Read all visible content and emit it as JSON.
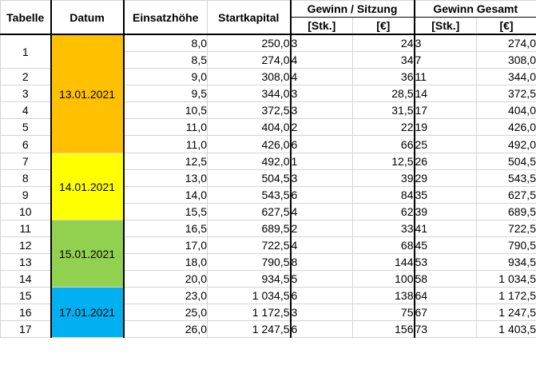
{
  "headers": {
    "tabelle": "Tabelle",
    "datum": "Datum",
    "einsatzhoehe": "Einsatzhöhe",
    "startkapital": "Startkapital",
    "gewinn_sitzung": "Gewinn / Sitzung",
    "gewinn_gesamt": "Gewinn Gesamt",
    "unit_stk": "[Stk.]",
    "unit_eur": "[€]"
  },
  "dates": [
    {
      "label": "13.01.2021",
      "color": "#ffc000"
    },
    {
      "label": "14.01.2021",
      "color": "#ffff00"
    },
    {
      "label": "15.01.2021",
      "color": "#92d050"
    },
    {
      "label": "17.01.2021",
      "color": "#00b0f0"
    }
  ],
  "rows": [
    {
      "tabelle": "1",
      "einsatz": "8,0",
      "start": "250,0",
      "sit_stk": "3",
      "sit_eur": "24",
      "ges_stk": "3",
      "ges_eur": "274,0"
    },
    {
      "tabelle": "",
      "einsatz": "8,5",
      "start": "274,0",
      "sit_stk": "4",
      "sit_eur": "34",
      "ges_stk": "7",
      "ges_eur": "308,0"
    },
    {
      "tabelle": "2",
      "einsatz": "9,0",
      "start": "308,0",
      "sit_stk": "4",
      "sit_eur": "36",
      "ges_stk": "11",
      "ges_eur": "344,0"
    },
    {
      "tabelle": "3",
      "einsatz": "9,5",
      "start": "344,0",
      "sit_stk": "3",
      "sit_eur": "28,5",
      "ges_stk": "14",
      "ges_eur": "372,5"
    },
    {
      "tabelle": "4",
      "einsatz": "10,5",
      "start": "372,5",
      "sit_stk": "3",
      "sit_eur": "31,5",
      "ges_stk": "17",
      "ges_eur": "404,0"
    },
    {
      "tabelle": "5",
      "einsatz": "11,0",
      "start": "404,0",
      "sit_stk": "2",
      "sit_eur": "22",
      "ges_stk": "19",
      "ges_eur": "426,0"
    },
    {
      "tabelle": "6",
      "einsatz": "11,0",
      "start": "426,0",
      "sit_stk": "6",
      "sit_eur": "66",
      "ges_stk": "25",
      "ges_eur": "492,0"
    },
    {
      "tabelle": "7",
      "einsatz": "12,5",
      "start": "492,0",
      "sit_stk": "1",
      "sit_eur": "12,5",
      "ges_stk": "26",
      "ges_eur": "504,5"
    },
    {
      "tabelle": "8",
      "einsatz": "13,0",
      "start": "504,5",
      "sit_stk": "3",
      "sit_eur": "39",
      "ges_stk": "29",
      "ges_eur": "543,5"
    },
    {
      "tabelle": "9",
      "einsatz": "14,0",
      "start": "543,5",
      "sit_stk": "6",
      "sit_eur": "84",
      "ges_stk": "35",
      "ges_eur": "627,5"
    },
    {
      "tabelle": "10",
      "einsatz": "15,5",
      "start": "627,5",
      "sit_stk": "4",
      "sit_eur": "62",
      "ges_stk": "39",
      "ges_eur": "689,5"
    },
    {
      "tabelle": "11",
      "einsatz": "16,5",
      "start": "689,5",
      "sit_stk": "2",
      "sit_eur": "33",
      "ges_stk": "41",
      "ges_eur": "722,5"
    },
    {
      "tabelle": "12",
      "einsatz": "17,0",
      "start": "722,5",
      "sit_stk": "4",
      "sit_eur": "68",
      "ges_stk": "45",
      "ges_eur": "790,5"
    },
    {
      "tabelle": "13",
      "einsatz": "18,0",
      "start": "790,5",
      "sit_stk": "8",
      "sit_eur": "144",
      "ges_stk": "53",
      "ges_eur": "934,5"
    },
    {
      "tabelle": "14",
      "einsatz": "20,0",
      "start": "934,5",
      "sit_stk": "5",
      "sit_eur": "100",
      "ges_stk": "58",
      "ges_eur": "1 034,5"
    },
    {
      "tabelle": "15",
      "einsatz": "23,0",
      "start": "1 034,5",
      "sit_stk": "6",
      "sit_eur": "138",
      "ges_stk": "64",
      "ges_eur": "1 172,5"
    },
    {
      "tabelle": "16",
      "einsatz": "25,0",
      "start": "1 172,5",
      "sit_stk": "3",
      "sit_eur": "75",
      "ges_stk": "67",
      "ges_eur": "1 247,5"
    },
    {
      "tabelle": "17",
      "einsatz": "26,0",
      "start": "1 247,5",
      "sit_stk": "6",
      "sit_eur": "156",
      "ges_stk": "73",
      "ges_eur": "1 403,5"
    }
  ]
}
